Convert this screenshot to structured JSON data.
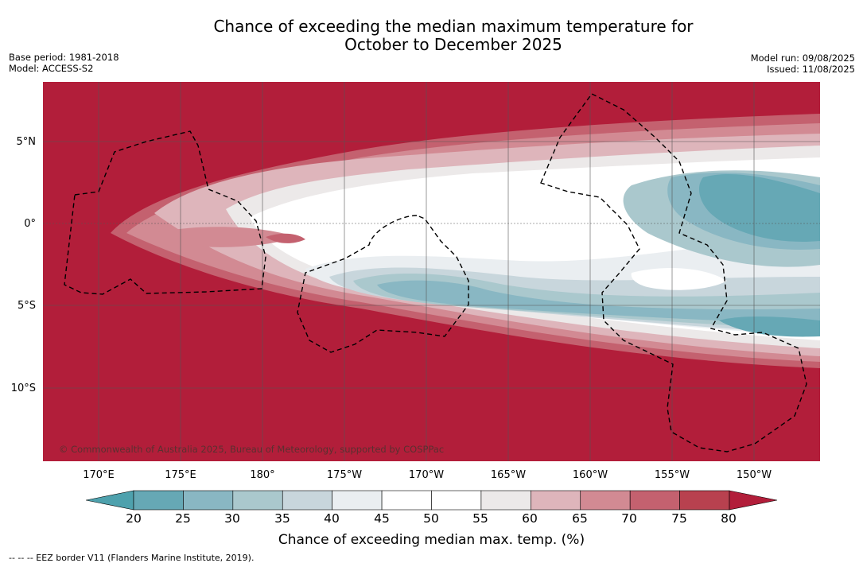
{
  "title": {
    "line1": "Chance of exceeding the median maximum temperature for",
    "line2": "October to December 2025"
  },
  "meta_left": {
    "base_period": "Base period: 1981-2018",
    "model": "Model: ACCESS-S2"
  },
  "meta_right": {
    "model_run": "Model run: 09/08/2025",
    "issued": "Issued: 11/08/2025"
  },
  "map": {
    "latitude_labels": [
      "5°N",
      "0°",
      "5°S",
      "10°S"
    ],
    "longitude_labels": [
      "170°E",
      "175°E",
      "180°",
      "175°W",
      "170°W",
      "165°W",
      "160°W",
      "155°W",
      "150°W"
    ],
    "copyright": "© Commonwealth of Australia 2025, Bureau of Meteorology, supported by COSPPac",
    "colors": {
      "ocean_high": "#b21e3a",
      "white": "#ffffff",
      "grid": "#555555"
    }
  },
  "legend": {
    "title": "Chance of exceeding median max. temp. (%)",
    "ticks": [
      "20",
      "25",
      "30",
      "35",
      "40",
      "45",
      "50",
      "55",
      "60",
      "65",
      "70",
      "75",
      "80"
    ],
    "colors": [
      "#66a8b5",
      "#89b7c3",
      "#aac8cd",
      "#c8d6dc",
      "#eaeef1",
      "#ffffff",
      "#ffffff",
      "#ece9e9",
      "#deb5bb",
      "#d28a93",
      "#c4616f",
      "#b8414f"
    ],
    "under_color": "#4ea1ad",
    "over_color": "#b21e3a"
  },
  "footer": {
    "eez_note": "--  --  -- EEZ border V11 (Flanders Marine Institute, 2019)."
  }
}
